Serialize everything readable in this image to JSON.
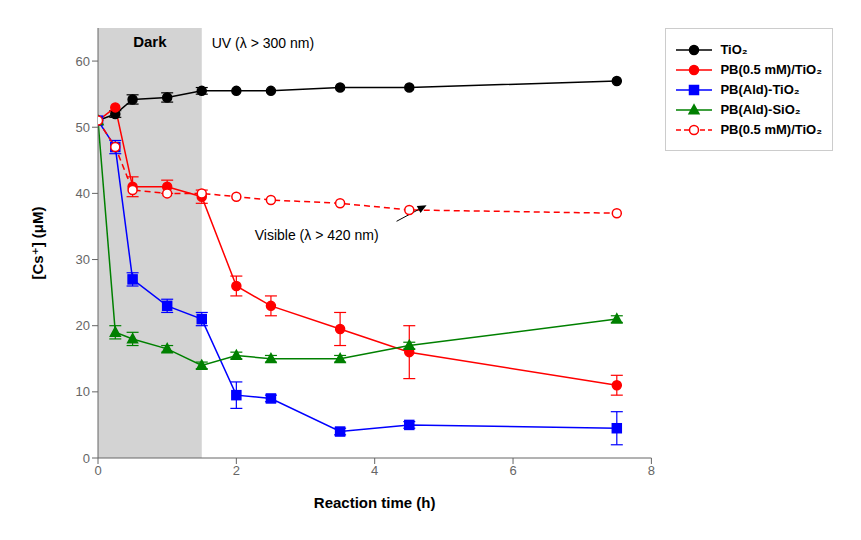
{
  "chart_data": {
    "type": "line",
    "x_label": "Reaction time (h)",
    "y_label": "[Cs⁺] (μM)",
    "x": [
      0,
      0.25,
      0.5,
      1.0,
      1.5,
      2.0,
      2.5,
      3.5,
      4.5,
      7.5
    ],
    "xlim": [
      0,
      8
    ],
    "xticks": [
      0,
      2,
      4,
      6,
      8
    ],
    "ylim": [
      0,
      65
    ],
    "yticks": [
      0,
      10,
      20,
      30,
      40,
      50,
      60
    ],
    "grid": false,
    "legend": "right",
    "series": [
      {
        "name": "TiO₂",
        "color": "#000000",
        "marker": "circle",
        "line_style": "solid",
        "values": [
          51,
          52,
          54.2,
          54.5,
          55.5,
          55.5,
          55.5,
          56,
          56,
          57
        ],
        "errors": [
          0,
          0.5,
          0.7,
          0.7,
          0.5,
          0,
          0,
          0,
          0,
          0
        ]
      },
      {
        "name": "PB(0.5 mM)/TiO₂",
        "color": "#ff0000",
        "marker": "circle",
        "line_style": "solid",
        "values": [
          51,
          53,
          41,
          41,
          39.5,
          26,
          23,
          19.5,
          16,
          11
        ],
        "errors": [
          0,
          0,
          1.5,
          1.0,
          1.0,
          1.5,
          1.5,
          2.5,
          4.0,
          1.5
        ]
      },
      {
        "name": "PB(Ald)-TiO₂",
        "color": "#0000ff",
        "marker": "square",
        "line_style": "solid",
        "values": [
          51,
          47,
          27,
          23,
          21,
          9.5,
          9.0,
          4.0,
          5.0,
          4.5
        ],
        "errors": [
          0,
          1.0,
          1.0,
          1.0,
          1.0,
          2.0,
          0.5,
          0.5,
          0.5,
          2.5
        ]
      },
      {
        "name": "PB(Ald)-SiO₂",
        "color": "#008000",
        "marker": "triangle",
        "line_style": "solid",
        "values": [
          51,
          19,
          18,
          16.5,
          14,
          15.5,
          15,
          15,
          17,
          21
        ],
        "errors": [
          0,
          1.0,
          1.0,
          0.5,
          0.5,
          0.5,
          0.5,
          0.5,
          0.5,
          0.5
        ]
      },
      {
        "name": "PB(0.5 mM)/TiO₂",
        "color": "#ff0000",
        "marker": "open circle",
        "line_style": "dashed",
        "values": [
          51,
          47,
          40.5,
          40,
          40,
          39.5,
          39,
          38.5,
          37.5,
          37
        ],
        "errors": [
          0,
          0,
          0,
          0,
          0,
          0,
          0,
          0,
          0,
          0
        ]
      }
    ],
    "annotations": [
      {
        "text": "Dark",
        "x_range": [
          0,
          1.5
        ],
        "color": "#d3d3d3"
      },
      {
        "text": "UV (λ > 300 nm)"
      },
      {
        "text": "Visible (λ > 420 nm)",
        "xy": [
          4.75,
          38.2
        ]
      }
    ]
  }
}
